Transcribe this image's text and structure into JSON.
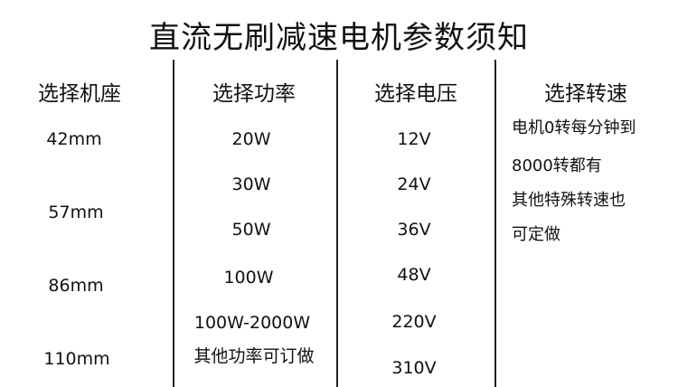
{
  "title": "直流无刷减速电机参数须知",
  "columns": [
    {
      "header": "选择机座",
      "items": [
        "42mm",
        "57mm",
        "86mm",
        "110mm"
      ]
    },
    {
      "header": "选择功率",
      "items": [
        "20W",
        "30W",
        "50W",
        "100W",
        "100W-2000W",
        "其他功率可订做"
      ]
    },
    {
      "header": "选择电压",
      "items": [
        "12V",
        "24V",
        "36V",
        "48V",
        "220V",
        "310V"
      ]
    },
    {
      "header": "选择转速",
      "lines": [
        "电机0转每分钟到",
        "8000转都有",
        "其他特殊转速也",
        "可定做"
      ]
    }
  ]
}
